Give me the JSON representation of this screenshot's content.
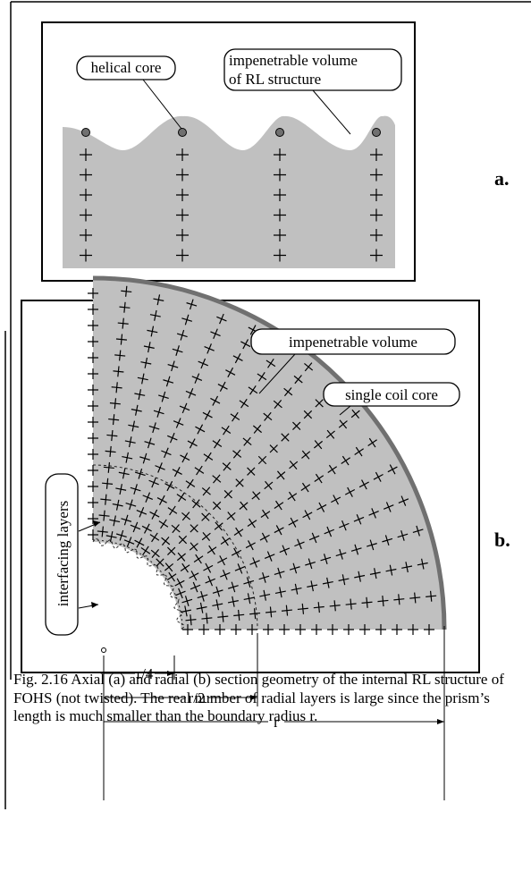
{
  "figure_a": {
    "label_helical_core": "helical core",
    "label_impenetrable_line1": "impenetrable volume",
    "label_impenetrable_line2": "of RL structure",
    "panel_letter": "a."
  },
  "figure_b": {
    "label_impenetrable_volume": "impenetrable volume",
    "label_single_coil_core": "single coil core",
    "label_interfacing_layers": "interfacing layers",
    "dim_r4": "r/4",
    "dim_r2": "r/2",
    "dim_r": "r",
    "panel_letter": "b."
  },
  "caption": "Fig. 2.16 Axial (a) and radial (b) section geometry of  the internal RL structure of FOHS (not twisted). The real number of radial layers is large since the prism’s length is much smaller than the boundary radius r.",
  "colors": {
    "fill_gray": "#c0c0c0",
    "core_gray": "#707070",
    "outline": "#000000"
  }
}
